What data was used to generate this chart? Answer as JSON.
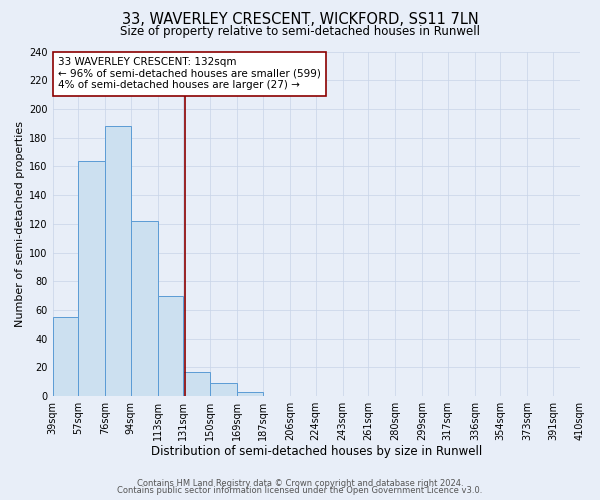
{
  "title": "33, WAVERLEY CRESCENT, WICKFORD, SS11 7LN",
  "subtitle": "Size of property relative to semi-detached houses in Runwell",
  "xlabel": "Distribution of semi-detached houses by size in Runwell",
  "ylabel": "Number of semi-detached properties",
  "bin_edges": [
    39,
    57,
    76,
    94,
    113,
    131,
    150,
    169,
    187,
    206,
    224,
    243,
    261,
    280,
    299,
    317,
    336,
    354,
    373,
    391,
    410
  ],
  "bin_counts": [
    55,
    164,
    188,
    122,
    70,
    17,
    9,
    3,
    0,
    0,
    0,
    0,
    0,
    0,
    0,
    0,
    0,
    0,
    0,
    0
  ],
  "bar_color": "#cce0f0",
  "bar_edge_color": "#5b9bd5",
  "property_size": 132,
  "vline_color": "#8b0000",
  "annotation_text": "33 WAVERLEY CRESCENT: 132sqm\n← 96% of semi-detached houses are smaller (599)\n4% of semi-detached houses are larger (27) →",
  "annotation_box_color": "white",
  "annotation_box_edge_color": "#8b0000",
  "ylim": [
    0,
    240
  ],
  "yticks": [
    0,
    20,
    40,
    60,
    80,
    100,
    120,
    140,
    160,
    180,
    200,
    220,
    240
  ],
  "grid_color": "#c8d4e8",
  "background_color": "#e8eef8",
  "footer_line1": "Contains HM Land Registry data © Crown copyright and database right 2024.",
  "footer_line2": "Contains public sector information licensed under the Open Government Licence v3.0.",
  "title_fontsize": 10.5,
  "subtitle_fontsize": 8.5,
  "xlabel_fontsize": 8.5,
  "ylabel_fontsize": 8,
  "tick_fontsize": 7,
  "annotation_fontsize": 7.5,
  "footer_fontsize": 6
}
